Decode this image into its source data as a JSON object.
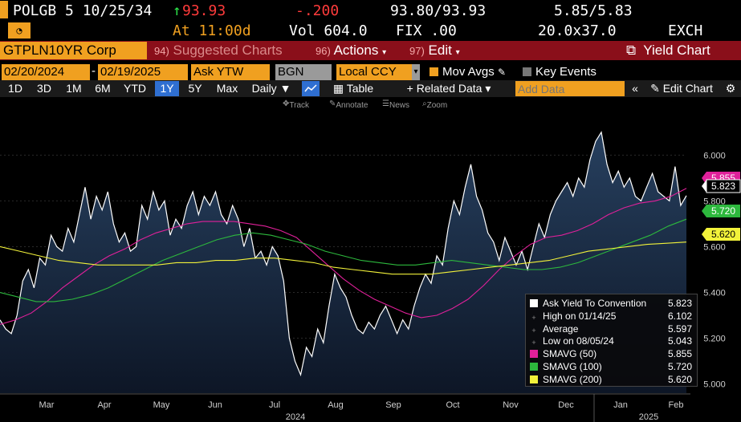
{
  "quote": {
    "ticker": "POLGB 5 10/25/34",
    "price": "93.93",
    "price_arrow": "↑",
    "change": "-.200",
    "bid_ask": "93.80/93.93",
    "yields": "5.85/5.83",
    "time": "At 11:00d",
    "vol": "Vol 604.0",
    "fix": "FIX .00",
    "size": "20.0x37.0",
    "exch": "EXCH"
  },
  "menu": {
    "security": "GTPLN10YR Corp",
    "suggested_num": "94)",
    "suggested": "Suggested Charts",
    "actions_num": "96)",
    "actions": "Actions",
    "edit_num": "97)",
    "edit": "Edit",
    "yield_chart": "Yield Chart"
  },
  "controls": {
    "start_date": "02/20/2024",
    "end_date": "02/19/2025",
    "field": "Ask YTW",
    "source": "BGN",
    "currency": "Local CCY",
    "mov_avgs": "Mov Avgs",
    "key_events": "Key Events"
  },
  "periods": {
    "items": [
      "1D",
      "3D",
      "1M",
      "6M",
      "YTD",
      "1Y",
      "5Y",
      "Max"
    ],
    "selected": "1Y",
    "daily": "Daily",
    "table": "Table",
    "related": "Related Data",
    "add_data_placeholder": "Add Data",
    "edit_chart": "Edit Chart"
  },
  "toolbar": {
    "track": "Track",
    "annotate": "Annotate",
    "news": "News",
    "zoom": "Zoom"
  },
  "colors": {
    "price": "#ffffff",
    "sma50": "#e0209a",
    "sma100": "#2db83d",
    "sma200": "#f2f23a",
    "area_top": "#27405f",
    "area_bottom": "#0d1626"
  },
  "legend": [
    {
      "label": "Ask Yield To Convention",
      "value": "5.823",
      "color": "#ffffff",
      "kind": "box"
    },
    {
      "label": "High on 01/14/25",
      "value": "6.102",
      "color": "#888888",
      "kind": "mark"
    },
    {
      "label": "Average",
      "value": "5.597",
      "color": "#888888",
      "kind": "mark"
    },
    {
      "label": "Low on 08/05/24",
      "value": "5.043",
      "color": "#888888",
      "kind": "mark"
    },
    {
      "label": "SMAVG (50)",
      "value": "5.855",
      "color": "#e0209a",
      "kind": "box"
    },
    {
      "label": "SMAVG (100)",
      "value": "5.720",
      "color": "#2db83d",
      "kind": "box"
    },
    {
      "label": "SMAVG (200)",
      "value": "5.620",
      "color": "#f2f23a",
      "kind": "box"
    }
  ],
  "chart_data": {
    "type": "line",
    "ylim": [
      4.96,
      6.18
    ],
    "y_ticks": [
      "5.000",
      "5.200",
      "5.400",
      "5.600",
      "5.800",
      "6.000"
    ],
    "x_labels": [
      "Mar",
      "Apr",
      "May",
      "Jun",
      "Jul",
      "Aug",
      "Sep",
      "Oct",
      "Nov",
      "Dec",
      "Jan",
      "Feb"
    ],
    "year_labels": [
      "2024",
      "2025"
    ],
    "last_values": [
      {
        "value": "5.823",
        "color": "#ffffff"
      },
      {
        "value": "5.855",
        "color": "#e0209a"
      },
      {
        "value": "5.720",
        "color": "#2db83d"
      },
      {
        "value": "5.620",
        "color": "#f2f23a"
      }
    ],
    "series": [
      {
        "name": "Ask Yield To Convention",
        "values": [
          5.28,
          5.24,
          5.22,
          5.3,
          5.45,
          5.5,
          5.42,
          5.55,
          5.52,
          5.65,
          5.6,
          5.58,
          5.68,
          5.62,
          5.74,
          5.86,
          5.72,
          5.82,
          5.76,
          5.84,
          5.7,
          5.62,
          5.66,
          5.58,
          5.6,
          5.78,
          5.72,
          5.84,
          5.76,
          5.8,
          5.65,
          5.72,
          5.68,
          5.78,
          5.84,
          5.74,
          5.82,
          5.78,
          5.84,
          5.74,
          5.7,
          5.78,
          5.72,
          5.6,
          5.68,
          5.55,
          5.58,
          5.52,
          5.6,
          5.56,
          5.45,
          5.2,
          5.1,
          5.04,
          5.16,
          5.12,
          5.24,
          5.18,
          5.34,
          5.48,
          5.42,
          5.38,
          5.3,
          5.24,
          5.22,
          5.27,
          5.24,
          5.3,
          5.34,
          5.28,
          5.22,
          5.28,
          5.24,
          5.34,
          5.42,
          5.48,
          5.44,
          5.56,
          5.52,
          5.68,
          5.8,
          5.74,
          5.86,
          5.96,
          5.82,
          5.76,
          5.66,
          5.62,
          5.54,
          5.64,
          5.58,
          5.52,
          5.58,
          5.5,
          5.6,
          5.7,
          5.64,
          5.74,
          5.8,
          5.84,
          5.88,
          5.82,
          5.9,
          5.86,
          5.98,
          6.06,
          6.1,
          5.96,
          5.88,
          5.93,
          5.86,
          5.9,
          5.82,
          5.8,
          5.86,
          5.92,
          5.84,
          5.82,
          5.8,
          5.95,
          5.78,
          5.823
        ]
      },
      {
        "name": "SMAVG (50)",
        "values": [
          5.26,
          5.28,
          5.31,
          5.36,
          5.42,
          5.47,
          5.52,
          5.56,
          5.59,
          5.63,
          5.66,
          5.68,
          5.7,
          5.71,
          5.71,
          5.71,
          5.7,
          5.69,
          5.67,
          5.64,
          5.58,
          5.52,
          5.46,
          5.41,
          5.37,
          5.34,
          5.31,
          5.29,
          5.3,
          5.33,
          5.37,
          5.43,
          5.5,
          5.56,
          5.61,
          5.64,
          5.65,
          5.67,
          5.7,
          5.74,
          5.77,
          5.79,
          5.8,
          5.82,
          5.855
        ]
      },
      {
        "name": "SMAVG (100)",
        "values": [
          5.4,
          5.38,
          5.36,
          5.36,
          5.37,
          5.39,
          5.42,
          5.46,
          5.5,
          5.54,
          5.57,
          5.6,
          5.63,
          5.65,
          5.66,
          5.65,
          5.63,
          5.61,
          5.58,
          5.56,
          5.54,
          5.53,
          5.52,
          5.52,
          5.53,
          5.54,
          5.53,
          5.52,
          5.51,
          5.5,
          5.5,
          5.51,
          5.53,
          5.56,
          5.59,
          5.62,
          5.65,
          5.69,
          5.72
        ]
      },
      {
        "name": "SMAVG (200)",
        "values": [
          5.6,
          5.58,
          5.56,
          5.54,
          5.53,
          5.52,
          5.52,
          5.52,
          5.52,
          5.53,
          5.53,
          5.54,
          5.54,
          5.55,
          5.55,
          5.54,
          5.53,
          5.51,
          5.5,
          5.49,
          5.48,
          5.48,
          5.48,
          5.49,
          5.5,
          5.51,
          5.52,
          5.53,
          5.54,
          5.56,
          5.58,
          5.59,
          5.6,
          5.61,
          5.615,
          5.62
        ]
      }
    ]
  }
}
